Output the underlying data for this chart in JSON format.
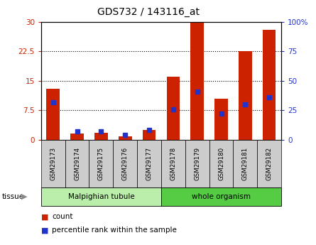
{
  "title": "GDS732 / 143116_at",
  "samples": [
    "GSM29173",
    "GSM29174",
    "GSM29175",
    "GSM29176",
    "GSM29177",
    "GSM29178",
    "GSM29179",
    "GSM29180",
    "GSM29181",
    "GSM29182"
  ],
  "count_values": [
    13.0,
    1.5,
    1.8,
    0.8,
    2.5,
    16.0,
    29.8,
    10.5,
    22.5,
    28.0
  ],
  "percentile_values": [
    32,
    7,
    7,
    4,
    8,
    26,
    41,
    22,
    30,
    36
  ],
  "tissue_groups": [
    {
      "label": "Malpighian tubule",
      "start": 0,
      "end": 5,
      "color": "#bbeeaa"
    },
    {
      "label": "whole organism",
      "start": 5,
      "end": 10,
      "color": "#55cc44"
    }
  ],
  "left_ylim": [
    0,
    30
  ],
  "right_ylim": [
    0,
    100
  ],
  "left_yticks": [
    0,
    7.5,
    15,
    22.5,
    30
  ],
  "left_yticklabels": [
    "0",
    "7.5",
    "15",
    "22.5",
    "30"
  ],
  "right_yticks": [
    0,
    25,
    50,
    75,
    100
  ],
  "right_yticklabels": [
    "0",
    "25",
    "50",
    "75",
    "100%"
  ],
  "bar_color": "#cc2200",
  "blue_color": "#2233cc",
  "bar_width": 0.55,
  "legend_count_label": "count",
  "legend_pct_label": "percentile rank within the sample",
  "tissue_label": "tissue",
  "sample_box_color": "#cccccc",
  "dotted_ticks": [
    7.5,
    15,
    22.5
  ]
}
